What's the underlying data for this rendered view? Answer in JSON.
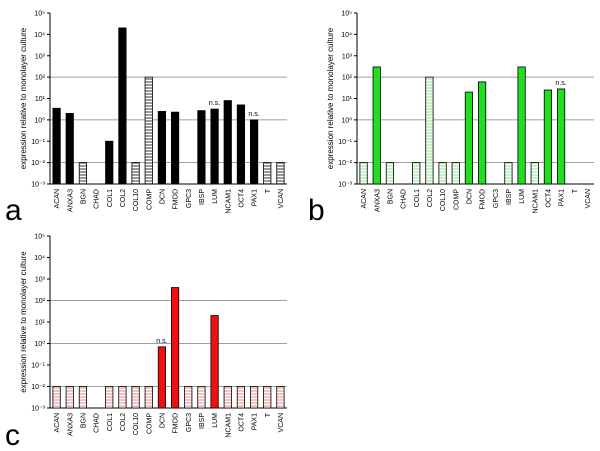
{
  "panels_label": [
    "a",
    "b",
    "c"
  ],
  "colors": {
    "panel_a_fill": "#000000",
    "panel_a_hatch": "#808080",
    "panel_b_fill": "#22dd22",
    "panel_b_hatch": "#b6f0b6",
    "panel_c_fill": "#ee1111",
    "panel_c_hatch": "#f4b4b4",
    "grid": "#808080"
  },
  "chart_data": [
    {
      "type": "bar",
      "panel": "a",
      "ylabel": "expression relative to monolayer culture",
      "yscale": "log",
      "ylim": [
        0.001,
        100000
      ],
      "yticks": [
        "10⁻³",
        "10⁻²",
        "10⁻¹",
        "10⁰",
        "10¹",
        "10²",
        "10³",
        "10⁴",
        "10⁵"
      ],
      "grid": "horizontal lines at 10⁻², 10⁰ and 10²",
      "categories": [
        "ACAN",
        "ANXA3",
        "BGN",
        "CHAD",
        "COL1",
        "COL2",
        "COL10",
        "COMP",
        "DCN",
        "FMOD",
        "GPC3",
        "IBSP",
        "LUM",
        "NCAM1",
        "OCT4",
        "PAX1",
        "T",
        "VCAN"
      ],
      "values": [
        3.5,
        2.0,
        0.01,
        null,
        0.1,
        20000,
        0.01,
        100,
        2.5,
        2.3,
        null,
        2.7,
        3.2,
        8,
        5,
        1.0,
        0.01,
        0.01
      ],
      "hatched": [
        false,
        false,
        true,
        false,
        false,
        false,
        true,
        true,
        false,
        false,
        false,
        false,
        false,
        false,
        false,
        false,
        true,
        true
      ],
      "annotations": [
        {
          "category": "LUM",
          "text": "n.s."
        },
        {
          "category": "PAX1",
          "text": "n.s."
        }
      ]
    },
    {
      "type": "bar",
      "panel": "b",
      "ylabel": "expression relative to monolayer culture",
      "yscale": "log",
      "ylim": [
        0.001,
        100000
      ],
      "yticks": [
        "10⁻³",
        "10⁻²",
        "10⁻¹",
        "10⁰",
        "10¹",
        "10²",
        "10³",
        "10⁴",
        "10⁵"
      ],
      "grid": "horizontal lines at 10⁻², 10⁰ and 10²",
      "categories": [
        "ACAN",
        "ANXA3",
        "BGN",
        "CHAD",
        "COL1",
        "COL2",
        "COL10",
        "COMP",
        "DCN",
        "FMOD",
        "GPC3",
        "IBSP",
        "LUM",
        "NCAM1",
        "OCT4",
        "PAX1",
        "T",
        "VCAN"
      ],
      "values": [
        0.01,
        300,
        0.01,
        null,
        0.01,
        100,
        0.01,
        0.01,
        20,
        60,
        null,
        0.01,
        300,
        0.01,
        25,
        28,
        null,
        null
      ],
      "hatched": [
        true,
        false,
        true,
        false,
        true,
        true,
        true,
        true,
        false,
        false,
        false,
        true,
        false,
        true,
        false,
        false,
        false,
        false
      ],
      "annotations": [
        {
          "category": "PAX1",
          "text": "n.s."
        }
      ]
    },
    {
      "type": "bar",
      "panel": "c",
      "ylabel": "expression relative to monolayer culture",
      "yscale": "log",
      "ylim": [
        0.001,
        100000
      ],
      "yticks": [
        "10⁻³",
        "10⁻²",
        "10⁻¹",
        "10⁰",
        "10¹",
        "10²",
        "10³",
        "10⁴",
        "10⁵"
      ],
      "grid": "horizontal lines at 10⁻², 10⁰ and 10²",
      "categories": [
        "ACAN",
        "ANXA3",
        "BGN",
        "CHAD",
        "COL1",
        "COL2",
        "COL10",
        "COMP",
        "DCN",
        "FMOD",
        "GPC3",
        "IBSP",
        "LUM",
        "NCAM1",
        "OCT4",
        "PAX1",
        "T",
        "VCAN"
      ],
      "values": [
        0.01,
        0.01,
        0.01,
        null,
        0.01,
        0.01,
        0.01,
        0.01,
        0.7,
        400,
        0.01,
        0.01,
        20,
        0.01,
        0.01,
        0.01,
        0.01,
        0.01
      ],
      "hatched": [
        true,
        true,
        true,
        false,
        true,
        true,
        true,
        true,
        false,
        false,
        true,
        true,
        false,
        true,
        true,
        true,
        true,
        true
      ],
      "annotations": [
        {
          "category": "DCN",
          "text": "n.s."
        }
      ]
    }
  ]
}
